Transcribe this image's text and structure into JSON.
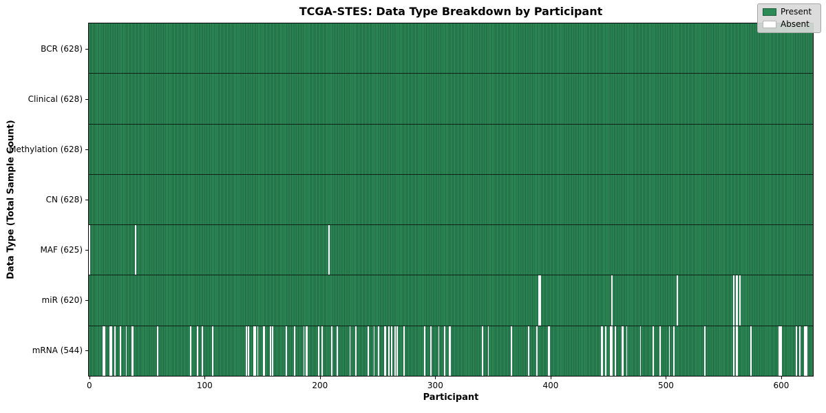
{
  "chart_data": {
    "type": "heatmap",
    "title": "TCGA-STES: Data Type Breakdown by Participant",
    "xlabel": "Participant",
    "ylabel": "Data Type (Total Sample Count)",
    "x_ticks": [
      0,
      100,
      200,
      300,
      400,
      500,
      600
    ],
    "xlim": [
      -0.5,
      627.5
    ],
    "total_participants": 628,
    "grid": false,
    "legend": {
      "position": "upper right",
      "present": "Present",
      "absent": "Absent"
    },
    "colors": {
      "present": "#2e8b57",
      "present_edge": "#1e6240",
      "absent": "#ffffff",
      "legend_background": "#d9d9d9"
    },
    "rows": [
      {
        "data_type": "BCR",
        "label": "BCR (628)",
        "present_count": 628,
        "absent_participants": []
      },
      {
        "data_type": "Clinical",
        "label": "Clinical (628)",
        "present_count": 628,
        "absent_participants": []
      },
      {
        "data_type": "Methylation",
        "label": "Methylation (628)",
        "present_count": 628,
        "absent_participants": []
      },
      {
        "data_type": "CN",
        "label": "CN (628)",
        "present_count": 628,
        "absent_participants": []
      },
      {
        "data_type": "MAF",
        "label": "MAF (625)",
        "present_count": 625,
        "absent_participants": [
          0,
          40,
          208
        ]
      },
      {
        "data_type": "miR",
        "label": "miR (620)",
        "present_count": 620,
        "absent_participants": [
          390,
          391,
          453,
          510,
          559,
          561,
          562,
          564
        ]
      },
      {
        "data_type": "mRNA",
        "label": "mRNA (544)",
        "present_count": 544,
        "absent_participants": [
          12,
          13,
          18,
          19,
          22,
          27,
          32,
          37,
          38,
          59,
          88,
          94,
          98,
          107,
          136,
          138,
          143,
          144,
          146,
          151,
          152,
          157,
          159,
          171,
          178,
          186,
          188,
          189,
          199,
          202,
          210,
          215,
          226,
          231,
          242,
          247,
          251,
          256,
          257,
          260,
          262,
          265,
          267,
          273,
          291,
          296,
          303,
          308,
          312,
          313,
          341,
          346,
          366,
          381,
          388,
          398,
          399,
          444,
          445,
          448,
          452,
          453,
          456,
          462,
          463,
          466,
          478,
          489,
          495,
          503,
          507,
          534,
          559,
          561,
          562,
          574,
          598,
          599,
          600,
          613,
          616,
          620,
          621,
          622
        ]
      }
    ]
  }
}
